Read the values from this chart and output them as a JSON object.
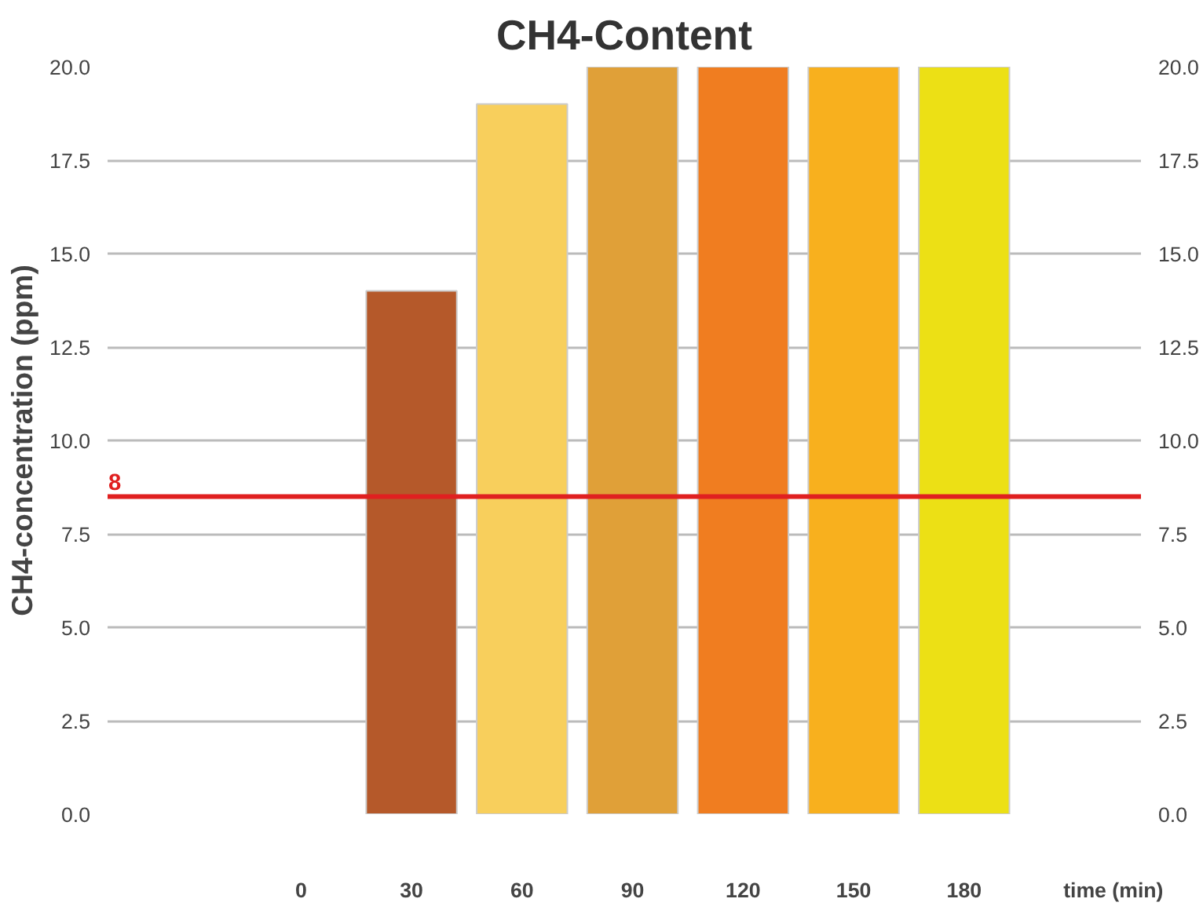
{
  "chart_data": {
    "type": "bar",
    "title": "CH4-Content",
    "xlabel": "time (min)",
    "ylabel": "CH4-concentration (ppm)",
    "categories": [
      "0",
      "30",
      "60",
      "90",
      "120",
      "150",
      "180"
    ],
    "values": [
      null,
      14,
      19,
      20,
      20,
      20,
      20
    ],
    "colors": [
      null,
      "#b5592a",
      "#f8cf5c",
      "#e0a038",
      "#f07d20",
      "#f8b01e",
      "#ece015"
    ],
    "ylim": [
      0,
      20
    ],
    "yticks": [
      {
        "value": 0,
        "label": "0.0"
      },
      {
        "value": 2.5,
        "label": "2.5"
      },
      {
        "value": 5,
        "label": "5.0"
      },
      {
        "value": 7.5,
        "label": "7.5"
      },
      {
        "value": 10,
        "label": "10.0"
      },
      {
        "value": 12.5,
        "label": "12.5"
      },
      {
        "value": 15,
        "label": "15.0"
      },
      {
        "value": 17.5,
        "label": "17.5"
      },
      {
        "value": 20,
        "label": "20.0"
      }
    ],
    "y2lim": [
      0,
      20
    ],
    "y2ticks": [
      {
        "value": 0,
        "label": "0.0"
      },
      {
        "value": 2.5,
        "label": "2.5"
      },
      {
        "value": 5,
        "label": "5.0"
      },
      {
        "value": 7.5,
        "label": "7.5"
      },
      {
        "value": 10,
        "label": "10.0"
      },
      {
        "value": 12.5,
        "label": "12.5"
      },
      {
        "value": 15,
        "label": "15.0"
      },
      {
        "value": 17.5,
        "label": "17.5"
      },
      {
        "value": 20,
        "label": "20.0"
      }
    ],
    "ref_lines": [
      {
        "axis": "y",
        "value": 8.5,
        "label": "8",
        "color": "#e02020",
        "line_style": "solid"
      }
    ],
    "grid": "y"
  }
}
